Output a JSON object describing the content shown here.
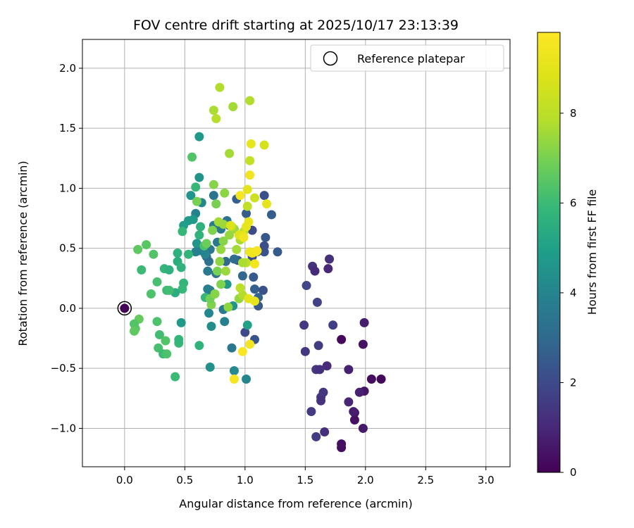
{
  "chart_data": {
    "type": "scatter",
    "title": "FOV centre drift starting at 2025/10/17 23:13:39",
    "xlabel": "Angular distance from reference (arcmin)",
    "ylabel": "Rotation from reference (arcmin)",
    "xlim": [
      -0.35,
      3.2
    ],
    "ylim": [
      -1.32,
      2.24
    ],
    "xticks": [
      0.0,
      0.5,
      1.0,
      1.5,
      2.0,
      2.5,
      3.0
    ],
    "xtick_labels": [
      "0.0",
      "0.5",
      "1.0",
      "1.5",
      "2.0",
      "2.5",
      "3.0"
    ],
    "yticks": [
      -1.0,
      -0.5,
      0.0,
      0.5,
      1.0,
      1.5,
      2.0
    ],
    "ytick_labels": [
      "−1.0",
      "−0.5",
      "0.0",
      "0.5",
      "1.0",
      "1.5",
      "2.0"
    ],
    "grid": true,
    "legend": {
      "position": "upper-right",
      "label": "Reference platepar"
    },
    "reference_point": {
      "x": 0.0,
      "y": 0.0
    },
    "colorbar": {
      "label": "Hours from first FF file",
      "colormap": "viridis",
      "range": [
        0,
        9.8
      ],
      "ticks": [
        0,
        2,
        4,
        6,
        8
      ],
      "tick_labels": [
        "0",
        "2",
        "4",
        "6",
        "8"
      ]
    },
    "points": [
      {
        "x": 0.0,
        "y": 0.0,
        "c": 0.05
      },
      {
        "x": 1.8,
        "y": -1.16,
        "c": 0.3
      },
      {
        "x": 1.8,
        "y": -1.13,
        "c": 0.35
      },
      {
        "x": 1.91,
        "y": -0.93,
        "c": 0.4
      },
      {
        "x": 1.91,
        "y": -0.87,
        "c": 0.45
      },
      {
        "x": 1.98,
        "y": -1.0,
        "c": 0.6
      },
      {
        "x": 1.9,
        "y": -0.86,
        "c": 0.7
      },
      {
        "x": 1.86,
        "y": -0.78,
        "c": 0.9
      },
      {
        "x": 1.99,
        "y": -0.69,
        "c": 0.5
      },
      {
        "x": 1.95,
        "y": -0.7,
        "c": 0.8
      },
      {
        "x": 2.05,
        "y": -0.59,
        "c": 0.3
      },
      {
        "x": 2.13,
        "y": -0.59,
        "c": 0.2
      },
      {
        "x": 1.8,
        "y": -0.26,
        "c": 0.2
      },
      {
        "x": 1.98,
        "y": -0.3,
        "c": 0.4
      },
      {
        "x": 1.99,
        "y": -0.12,
        "c": 0.7
      },
      {
        "x": 1.86,
        "y": -0.51,
        "c": 0.8
      },
      {
        "x": 1.68,
        "y": -0.48,
        "c": 1.1
      },
      {
        "x": 1.59,
        "y": -0.51,
        "c": 1.4
      },
      {
        "x": 1.62,
        "y": -0.51,
        "c": 1.2
      },
      {
        "x": 1.63,
        "y": -0.74,
        "c": 1.5
      },
      {
        "x": 1.63,
        "y": -0.77,
        "c": 1.3
      },
      {
        "x": 1.65,
        "y": -0.7,
        "c": 1.4
      },
      {
        "x": 1.66,
        "y": -1.03,
        "c": 1.2
      },
      {
        "x": 1.59,
        "y": -1.07,
        "c": 1.6
      },
      {
        "x": 1.55,
        "y": -0.86,
        "c": 1.5
      },
      {
        "x": 1.5,
        "y": -0.36,
        "c": 1.4
      },
      {
        "x": 1.61,
        "y": -0.31,
        "c": 1.6
      },
      {
        "x": 1.49,
        "y": -0.14,
        "c": 1.5
      },
      {
        "x": 1.73,
        "y": -0.14,
        "c": 1.7
      },
      {
        "x": 1.6,
        "y": 0.05,
        "c": 1.8
      },
      {
        "x": 1.51,
        "y": 0.19,
        "c": 1.9
      },
      {
        "x": 1.56,
        "y": 0.35,
        "c": 1.3
      },
      {
        "x": 1.58,
        "y": 0.31,
        "c": 1.1
      },
      {
        "x": 1.69,
        "y": 0.33,
        "c": 1.0
      },
      {
        "x": 1.7,
        "y": 0.41,
        "c": 1.2
      },
      {
        "x": 1.27,
        "y": 0.47,
        "c": 2.5
      },
      {
        "x": 1.22,
        "y": 0.78,
        "c": 2.6
      },
      {
        "x": 1.16,
        "y": 0.94,
        "c": 2.2
      },
      {
        "x": 1.17,
        "y": 0.59,
        "c": 2.4
      },
      {
        "x": 1.16,
        "y": 0.47,
        "c": 2.3
      },
      {
        "x": 1.16,
        "y": 0.52,
        "c": 2.1
      },
      {
        "x": 1.1,
        "y": 0.47,
        "c": 2.2
      },
      {
        "x": 1.06,
        "y": 0.65,
        "c": 2.0
      },
      {
        "x": 1.01,
        "y": 0.79,
        "c": 2.6
      },
      {
        "x": 1.06,
        "y": 0.43,
        "c": 2.1
      },
      {
        "x": 1.07,
        "y": 0.26,
        "c": 2.5
      },
      {
        "x": 1.08,
        "y": 0.16,
        "c": 2.7
      },
      {
        "x": 1.15,
        "y": 0.15,
        "c": 2.2
      },
      {
        "x": 1.11,
        "y": 0.09,
        "c": 2.8
      },
      {
        "x": 1.11,
        "y": 0.02,
        "c": 2.4
      },
      {
        "x": 1.0,
        "y": -0.2,
        "c": 2.0
      },
      {
        "x": 1.08,
        "y": -0.26,
        "c": 2.3
      },
      {
        "x": 0.98,
        "y": 0.27,
        "c": 2.9
      },
      {
        "x": 0.94,
        "y": 0.4,
        "c": 2.5
      },
      {
        "x": 0.93,
        "y": 0.91,
        "c": 2.7
      },
      {
        "x": 0.91,
        "y": 0.41,
        "c": 3.1
      },
      {
        "x": 0.87,
        "y": 0.69,
        "c": 3.2
      },
      {
        "x": 0.85,
        "y": 0.73,
        "c": 3.3
      },
      {
        "x": 0.84,
        "y": 0.39,
        "c": 3.0
      },
      {
        "x": 0.8,
        "y": 0.66,
        "c": 3.5
      },
      {
        "x": 0.77,
        "y": 0.55,
        "c": 3.6
      },
      {
        "x": 0.76,
        "y": 0.29,
        "c": 3.4
      },
      {
        "x": 0.71,
        "y": 0.49,
        "c": 3.5
      },
      {
        "x": 0.74,
        "y": 0.69,
        "c": 3.7
      },
      {
        "x": 0.74,
        "y": 0.94,
        "c": 3.4
      },
      {
        "x": 0.69,
        "y": 0.31,
        "c": 3.6
      },
      {
        "x": 0.7,
        "y": 0.39,
        "c": 3.3
      },
      {
        "x": 0.68,
        "y": 0.43,
        "c": 3.1
      },
      {
        "x": 0.62,
        "y": 0.48,
        "c": 3.8
      },
      {
        "x": 0.59,
        "y": 0.47,
        "c": 3.9
      },
      {
        "x": 0.59,
        "y": 0.79,
        "c": 3.9
      },
      {
        "x": 0.64,
        "y": 0.88,
        "c": 4.1
      },
      {
        "x": 0.67,
        "y": 0.45,
        "c": 4.0
      },
      {
        "x": 0.69,
        "y": 0.16,
        "c": 3.8
      },
      {
        "x": 0.71,
        "y": 0.15,
        "c": 3.9
      },
      {
        "x": 0.82,
        "y": -0.01,
        "c": 3.7
      },
      {
        "x": 0.83,
        "y": -0.11,
        "c": 3.9
      },
      {
        "x": 0.89,
        "y": -0.33,
        "c": 3.5
      },
      {
        "x": 0.91,
        "y": -0.52,
        "c": 4.2
      },
      {
        "x": 1.01,
        "y": -0.59,
        "c": 4.1
      },
      {
        "x": 0.72,
        "y": -0.15,
        "c": 4.3
      },
      {
        "x": 0.7,
        "y": -0.04,
        "c": 4.1
      },
      {
        "x": 0.71,
        "y": -0.49,
        "c": 4.4
      },
      {
        "x": 0.55,
        "y": 0.94,
        "c": 4.6
      },
      {
        "x": 0.57,
        "y": 0.74,
        "c": 4.7
      },
      {
        "x": 0.53,
        "y": 0.73,
        "c": 4.8
      },
      {
        "x": 0.49,
        "y": 0.69,
        "c": 4.9
      },
      {
        "x": 0.47,
        "y": -0.12,
        "c": 4.8
      },
      {
        "x": 0.62,
        "y": 1.09,
        "c": 4.5
      },
      {
        "x": 0.62,
        "y": 1.43,
        "c": 4.7
      },
      {
        "x": 0.6,
        "y": 0.54,
        "c": 4.6
      },
      {
        "x": 1.02,
        "y": -0.14,
        "c": 5.0
      },
      {
        "x": 0.85,
        "y": 0.2,
        "c": 4.7
      },
      {
        "x": 0.9,
        "y": 0.02,
        "c": 4.5
      },
      {
        "x": 0.44,
        "y": 0.46,
        "c": 5.6
      },
      {
        "x": 0.44,
        "y": 0.39,
        "c": 5.5
      },
      {
        "x": 0.47,
        "y": 0.34,
        "c": 5.7
      },
      {
        "x": 0.49,
        "y": 0.21,
        "c": 5.8
      },
      {
        "x": 0.48,
        "y": 0.16,
        "c": 5.9
      },
      {
        "x": 0.42,
        "y": 0.13,
        "c": 5.5
      },
      {
        "x": 0.33,
        "y": 0.33,
        "c": 5.8
      },
      {
        "x": 0.35,
        "y": 0.15,
        "c": 6.0
      },
      {
        "x": 0.37,
        "y": 0.15,
        "c": 6.1
      },
      {
        "x": 0.37,
        "y": 0.32,
        "c": 5.6
      },
      {
        "x": 0.27,
        "y": 0.22,
        "c": 6.2
      },
      {
        "x": 0.22,
        "y": 0.12,
        "c": 6.3
      },
      {
        "x": 0.24,
        "y": 0.45,
        "c": 6.4
      },
      {
        "x": 0.18,
        "y": 0.53,
        "c": 6.5
      },
      {
        "x": 0.11,
        "y": 0.49,
        "c": 6.6
      },
      {
        "x": 0.14,
        "y": 0.32,
        "c": 6.0
      },
      {
        "x": 0.12,
        "y": -0.09,
        "c": 6.7
      },
      {
        "x": 0.09,
        "y": -0.17,
        "c": 6.5
      },
      {
        "x": 0.08,
        "y": -0.13,
        "c": 6.4
      },
      {
        "x": 0.08,
        "y": -0.19,
        "c": 6.6
      },
      {
        "x": 0.27,
        "y": -0.11,
        "c": 6.3
      },
      {
        "x": 0.29,
        "y": -0.22,
        "c": 6.1
      },
      {
        "x": 0.28,
        "y": -0.33,
        "c": 6.2
      },
      {
        "x": 0.32,
        "y": -0.38,
        "c": 6.0
      },
      {
        "x": 0.34,
        "y": -0.27,
        "c": 6.4
      },
      {
        "x": 0.35,
        "y": -0.38,
        "c": 6.3
      },
      {
        "x": 0.45,
        "y": -0.29,
        "c": 5.9
      },
      {
        "x": 0.45,
        "y": -0.26,
        "c": 5.8
      },
      {
        "x": 0.42,
        "y": -0.57,
        "c": 6.0
      },
      {
        "x": 0.62,
        "y": -0.31,
        "c": 5.7
      },
      {
        "x": 0.48,
        "y": 0.64,
        "c": 5.9
      },
      {
        "x": 0.53,
        "y": 0.45,
        "c": 5.8
      },
      {
        "x": 0.62,
        "y": 0.61,
        "c": 5.7
      },
      {
        "x": 0.63,
        "y": 0.68,
        "c": 5.6
      },
      {
        "x": 0.59,
        "y": 1.01,
        "c": 5.9
      },
      {
        "x": 0.67,
        "y": 0.09,
        "c": 5.9
      },
      {
        "x": 0.56,
        "y": 1.26,
        "c": 6.4
      },
      {
        "x": 0.66,
        "y": 0.52,
        "c": 6.3
      },
      {
        "x": 0.6,
        "y": 0.89,
        "c": 7.0
      },
      {
        "x": 0.68,
        "y": 0.54,
        "c": 6.8
      },
      {
        "x": 0.73,
        "y": 0.65,
        "c": 7.1
      },
      {
        "x": 0.74,
        "y": 1.03,
        "c": 7.2
      },
      {
        "x": 0.76,
        "y": 0.87,
        "c": 7.0
      },
      {
        "x": 0.72,
        "y": 0.03,
        "c": 7.1
      },
      {
        "x": 0.71,
        "y": 0.08,
        "c": 6.9
      },
      {
        "x": 0.75,
        "y": 0.12,
        "c": 7.2
      },
      {
        "x": 0.77,
        "y": 0.31,
        "c": 7.0
      },
      {
        "x": 0.79,
        "y": 0.39,
        "c": 7.3
      },
      {
        "x": 0.8,
        "y": 0.2,
        "c": 7.1
      },
      {
        "x": 0.8,
        "y": 0.49,
        "c": 7.4
      },
      {
        "x": 0.82,
        "y": 0.56,
        "c": 7.2
      },
      {
        "x": 0.83,
        "y": 0.96,
        "c": 7.3
      },
      {
        "x": 0.84,
        "y": 0.31,
        "c": 7.5
      },
      {
        "x": 0.87,
        "y": 0.61,
        "c": 7.4
      },
      {
        "x": 0.86,
        "y": 0.01,
        "c": 7.3
      },
      {
        "x": 0.91,
        "y": 0.66,
        "c": 7.5
      },
      {
        "x": 0.93,
        "y": 0.49,
        "c": 7.6
      },
      {
        "x": 0.95,
        "y": 0.08,
        "c": 7.4
      },
      {
        "x": 0.96,
        "y": 0.57,
        "c": 7.7
      },
      {
        "x": 0.98,
        "y": 0.11,
        "c": 7.8
      },
      {
        "x": 0.99,
        "y": 0.64,
        "c": 7.9
      },
      {
        "x": 1.01,
        "y": 0.38,
        "c": 8.0
      },
      {
        "x": 1.02,
        "y": 0.85,
        "c": 8.1
      },
      {
        "x": 1.04,
        "y": 1.23,
        "c": 8.2
      },
      {
        "x": 1.08,
        "y": 0.92,
        "c": 8.4
      },
      {
        "x": 1.16,
        "y": 1.36,
        "c": 8.6
      },
      {
        "x": 0.87,
        "y": 1.29,
        "c": 7.6
      },
      {
        "x": 0.79,
        "y": 1.84,
        "c": 7.8
      },
      {
        "x": 0.74,
        "y": 1.65,
        "c": 7.7
      },
      {
        "x": 0.76,
        "y": 1.58,
        "c": 7.9
      },
      {
        "x": 0.9,
        "y": 1.68,
        "c": 7.6
      },
      {
        "x": 1.04,
        "y": 1.73,
        "c": 7.8
      },
      {
        "x": 0.78,
        "y": 0.72,
        "c": 7.6
      },
      {
        "x": 0.82,
        "y": 0.7,
        "c": 7.5
      },
      {
        "x": 0.89,
        "y": 0.68,
        "c": 7.9
      },
      {
        "x": 0.96,
        "y": 0.17,
        "c": 8.0
      },
      {
        "x": 0.98,
        "y": 0.38,
        "c": 7.7
      },
      {
        "x": 0.88,
        "y": 0.69,
        "c": 8.8
      },
      {
        "x": 0.95,
        "y": 0.61,
        "c": 8.9
      },
      {
        "x": 0.98,
        "y": 0.61,
        "c": 9.0
      },
      {
        "x": 1.01,
        "y": 0.68,
        "c": 9.1
      },
      {
        "x": 1.03,
        "y": 0.72,
        "c": 9.2
      },
      {
        "x": 1.04,
        "y": 0.47,
        "c": 9.3
      },
      {
        "x": 1.06,
        "y": 0.46,
        "c": 9.4
      },
      {
        "x": 1.08,
        "y": 0.37,
        "c": 9.5
      },
      {
        "x": 1.09,
        "y": 0.47,
        "c": 9.3
      },
      {
        "x": 1.04,
        "y": 1.11,
        "c": 9.4
      },
      {
        "x": 1.05,
        "y": 1.37,
        "c": 9.2
      },
      {
        "x": 1.02,
        "y": 0.99,
        "c": 9.0
      },
      {
        "x": 0.96,
        "y": 0.94,
        "c": 9.6
      },
      {
        "x": 1.18,
        "y": 0.87,
        "c": 9.1
      },
      {
        "x": 1.03,
        "y": 0.08,
        "c": 9.0
      },
      {
        "x": 1.08,
        "y": 0.06,
        "c": 9.2
      },
      {
        "x": 1.04,
        "y": -0.3,
        "c": 9.5
      },
      {
        "x": 0.98,
        "y": -0.36,
        "c": 9.7
      },
      {
        "x": 0.91,
        "y": -0.59,
        "c": 9.6
      },
      {
        "x": 0.99,
        "y": 0.59,
        "c": 9.4
      },
      {
        "x": 1.1,
        "y": 0.48,
        "c": 9.6
      }
    ]
  }
}
